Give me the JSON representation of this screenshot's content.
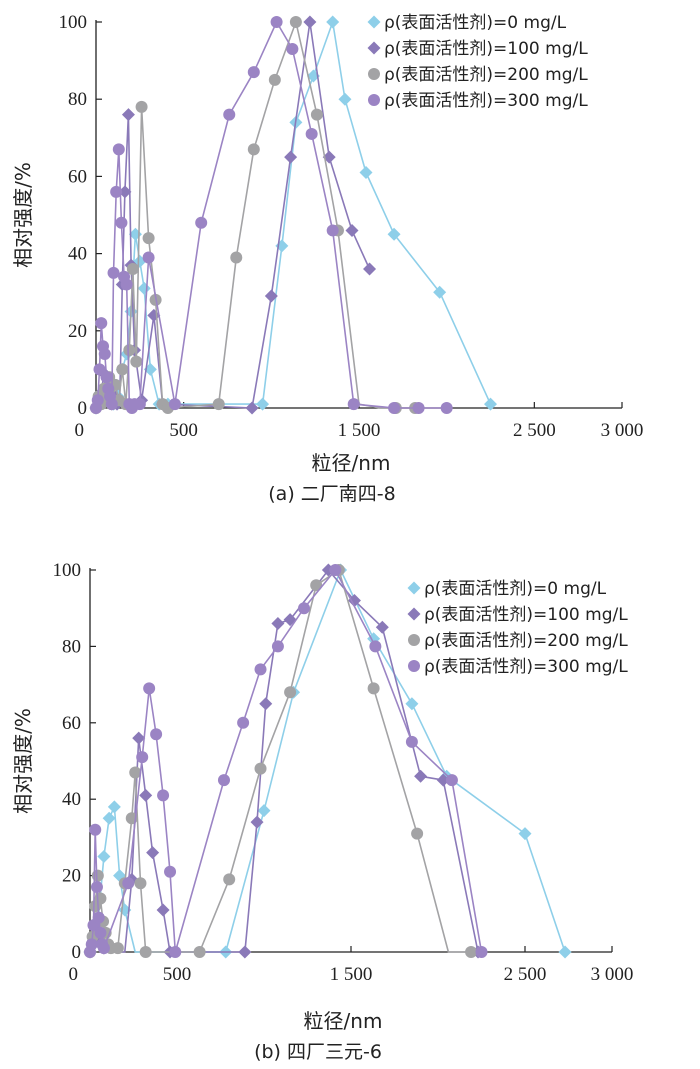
{
  "colors": {
    "s0": "#8ecfe9",
    "s1": "#8a79b8",
    "s2": "#a3a3a5",
    "s3": "#9b84c4"
  },
  "chart_data": [
    {
      "type": "line",
      "caption": "(a) 二厂南四-8",
      "xlabel": "粒径/nm",
      "ylabel": "相对强度/%",
      "xlim": [
        0,
        3000
      ],
      "ylim": [
        0,
        100
      ],
      "xticks": [
        0,
        500,
        1500,
        2500,
        3000
      ],
      "xtick_labels": [
        "0",
        "500",
        "1 500",
        "2 500",
        "3 000"
      ],
      "yticks": [
        0,
        20,
        40,
        60,
        80,
        100
      ],
      "ytick_labels": [
        "0",
        "20",
        "40",
        "60",
        "80",
        "100"
      ],
      "legend_position": "top-right",
      "series": [
        {
          "name": "ρ(表面活性剂)=0 mg/L",
          "marker": "diamond",
          "x": [
            0,
            25,
            50,
            75,
            100,
            125,
            150,
            175,
            200,
            225,
            250,
            275,
            310,
            360,
            410,
            950,
            1060,
            1140,
            1240,
            1350,
            1420,
            1540,
            1700,
            1960,
            2250
          ],
          "y": [
            0,
            2,
            5,
            6,
            1,
            3,
            10,
            14,
            25,
            45,
            38,
            31,
            10,
            1,
            1,
            1,
            42,
            74,
            86,
            100,
            80,
            61,
            45,
            30,
            1
          ]
        },
        {
          "name": "ρ(表面活性剂)=100 mg/L",
          "marker": "diamond",
          "x": [
            0,
            15,
            30,
            45,
            60,
            75,
            90,
            105,
            120,
            135,
            150,
            165,
            185,
            200,
            220,
            260,
            330,
            380,
            890,
            1000,
            1110,
            1220,
            1330,
            1460,
            1560
          ],
          "y": [
            0,
            1,
            4,
            9,
            2,
            5,
            1,
            3,
            1,
            2,
            32,
            56,
            76,
            37,
            15,
            2,
            24,
            1,
            0,
            29,
            65,
            100,
            65,
            46,
            36
          ]
        },
        {
          "name": "ρ(表面活性剂)=200 mg/L",
          "marker": "circle",
          "x": [
            0,
            15,
            30,
            45,
            60,
            75,
            90,
            110,
            130,
            150,
            170,
            190,
            210,
            230,
            260,
            300,
            340,
            380,
            410,
            700,
            800,
            900,
            1020,
            1140,
            1260,
            1380,
            1500,
            1620,
            1710,
            1820
          ],
          "y": [
            0,
            3,
            1,
            5,
            2,
            8,
            1,
            6,
            2,
            10,
            1,
            15,
            36,
            12,
            78,
            44,
            28,
            1,
            0,
            1,
            39,
            67,
            85,
            100,
            76,
            46,
            1,
            0,
            0,
            0
          ],
          "x_shown": [
            0,
            15,
            30,
            45,
            60,
            75,
            90,
            110,
            130,
            150,
            170,
            190,
            210,
            230,
            260,
            300,
            340,
            380,
            410,
            700,
            800,
            900,
            1020,
            1140,
            1260,
            1380,
            1710,
            1820
          ]
        },
        {
          "name": "ρ(表面活性剂)=300 mg/L",
          "marker": "circle",
          "x": [
            0,
            10,
            20,
            30,
            40,
            50,
            60,
            70,
            80,
            90,
            100,
            115,
            130,
            145,
            160,
            175,
            190,
            205,
            220,
            250,
            300,
            450,
            600,
            760,
            900,
            1030,
            1120,
            1230,
            1350,
            1470,
            1700,
            1840,
            2000
          ],
          "y": [
            0,
            2,
            10,
            22,
            16,
            14,
            8,
            5,
            3,
            1,
            35,
            56,
            67,
            48,
            34,
            32,
            1,
            0,
            1,
            1,
            39,
            1,
            48,
            76,
            87,
            100,
            93,
            71,
            46,
            1,
            0,
            0,
            0
          ]
        }
      ]
    },
    {
      "type": "line",
      "caption": "(b) 四厂三元-6",
      "xlabel": "粒径/nm",
      "ylabel": "相对强度/%",
      "xlim": [
        0,
        3000
      ],
      "ylim": [
        0,
        100
      ],
      "xticks": [
        0,
        500,
        1500,
        2500,
        3000
      ],
      "xtick_labels": [
        "0",
        "500",
        "1 500",
        "2 500",
        "3 000"
      ],
      "yticks": [
        0,
        20,
        40,
        60,
        80,
        100
      ],
      "ytick_labels": [
        "0",
        "20",
        "40",
        "60",
        "80",
        "100"
      ],
      "legend_position": "top-right",
      "series": [
        {
          "name": "ρ(表面活性剂)=0 mg/L",
          "marker": "diamond",
          "x": [
            0,
            40,
            80,
            110,
            140,
            170,
            200,
            260,
            330,
            780,
            1000,
            1170,
            1440,
            1630,
            1850,
            2050,
            2500,
            2730
          ],
          "y": [
            0,
            5,
            25,
            35,
            38,
            20,
            11,
            0,
            0,
            0,
            37,
            68,
            100,
            82,
            65,
            46,
            31,
            0
          ],
          "x_shown": [
            0,
            40,
            80,
            110,
            140,
            170,
            200,
            780,
            1000,
            1170,
            1440,
            1630,
            1850,
            2050,
            2500,
            2730
          ]
        },
        {
          "name": "ρ(表面活性剂)=100 mg/L",
          "marker": "diamond",
          "x": [
            0,
            20,
            40,
            60,
            80,
            120,
            160,
            200,
            240,
            280,
            320,
            360,
            420,
            460,
            890,
            960,
            1010,
            1080,
            1150,
            1370,
            1520,
            1680,
            1900,
            2030,
            2230
          ],
          "y": [
            0,
            3,
            8,
            4,
            1,
            0,
            0,
            0,
            19,
            56,
            41,
            26,
            11,
            0,
            0,
            34,
            65,
            86,
            87,
            100,
            92,
            85,
            46,
            45,
            0
          ],
          "x_shown": [
            0,
            20,
            40,
            60,
            80,
            240,
            280,
            320,
            360,
            420,
            460,
            890,
            960,
            1010,
            1080,
            1150,
            1370,
            1520,
            1680,
            1900,
            2030,
            2230
          ]
        },
        {
          "name": "ρ(表面活性剂)=200 mg/L",
          "marker": "circle",
          "x": [
            0,
            15,
            30,
            45,
            60,
            75,
            90,
            105,
            120,
            160,
            200,
            240,
            260,
            290,
            320,
            370,
            630,
            800,
            980,
            1150,
            1300,
            1430,
            1630,
            1880,
            2060,
            2190
          ],
          "y": [
            0,
            4,
            12,
            20,
            14,
            8,
            5,
            2,
            1,
            1,
            18,
            35,
            47,
            18,
            0,
            0,
            0,
            19,
            48,
            68,
            96,
            100,
            69,
            31,
            0,
            0
          ],
          "x_shown": [
            0,
            15,
            30,
            45,
            60,
            75,
            90,
            105,
            120,
            160,
            200,
            240,
            260,
            290,
            320,
            630,
            800,
            980,
            1150,
            1300,
            1430,
            1630,
            1880,
            2190
          ]
        },
        {
          "name": "ρ(表面活性剂)=300 mg/L",
          "marker": "circle",
          "x": [
            0,
            10,
            20,
            30,
            40,
            50,
            60,
            70,
            80,
            220,
            300,
            340,
            380,
            420,
            460,
            490,
            770,
            880,
            980,
            1080,
            1230,
            1410,
            1640,
            1850,
            2080,
            2250
          ],
          "y": [
            0,
            2,
            7,
            32,
            17,
            9,
            5,
            2,
            1,
            18,
            51,
            69,
            57,
            41,
            21,
            0,
            45,
            60,
            74,
            80,
            90,
            100,
            80,
            55,
            45,
            0
          ],
          "x_shown": [
            0,
            10,
            20,
            30,
            40,
            50,
            60,
            70,
            80,
            220,
            300,
            340,
            380,
            420,
            460,
            490,
            770,
            880,
            980,
            1080,
            1230,
            1410,
            1640,
            1850,
            2080,
            2250
          ]
        }
      ]
    }
  ]
}
